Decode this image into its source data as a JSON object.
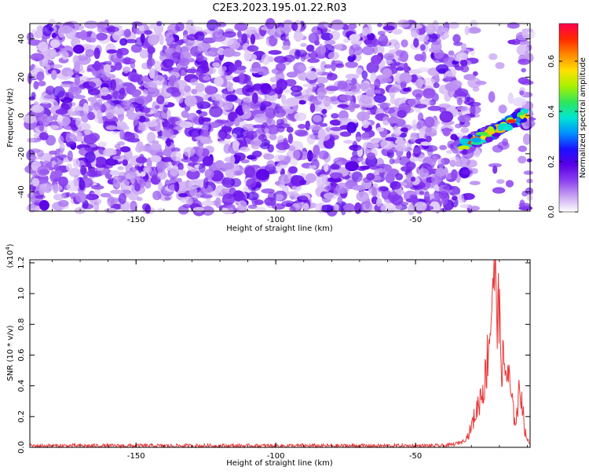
{
  "title": "C2E3.2023.195.01.22.R03",
  "chart_data": [
    {
      "type": "heatmap",
      "xlabel": "Height of straight line (km)",
      "ylabel": "Frequency (Hz)",
      "xlim": [
        -188,
        -9
      ],
      "ylim": [
        -50,
        48
      ],
      "xticks": [
        -150,
        -100,
        -50
      ],
      "yticks": [
        -40,
        -20,
        0,
        20,
        40
      ],
      "colorbar": {
        "label": "Normalized spectral amplitude",
        "range": [
          0,
          0.75
        ],
        "ticks": [
          0.0,
          0.2,
          0.4,
          0.6
        ],
        "colormap": [
          "#ffffff",
          "#c8a4f2",
          "#8a3ff0",
          "#5a00e6",
          "#1a10ff",
          "#0090ff",
          "#00e6d2",
          "#2ee65a",
          "#a8f000",
          "#ffe000",
          "#ff8a00",
          "#ff2a00",
          "#ff0050"
        ]
      },
      "signal": {
        "x_range": [
          -33,
          -11
        ],
        "freq_start": -16,
        "freq_end": 0,
        "peak_amplitude": 0.7
      },
      "background_amplitude_max": 0.2,
      "white_gap_x": [
        -31,
        -12
      ]
    },
    {
      "type": "line",
      "xlabel": "Height of straight line (km)",
      "ylabel": "SNR (10 * v/v)",
      "y_multiplier_label": "(x10",
      "y_multiplier_exp": "4",
      "xlim": [
        -188,
        -9
      ],
      "ylim": [
        0,
        1.22
      ],
      "xticks": [
        -150,
        -100,
        -50
      ],
      "yticks": [
        0.0,
        0.2,
        0.4,
        0.6,
        0.8,
        1.0,
        1.2
      ],
      "line_color": "#e8383a",
      "series": [
        {
          "x": [
            -188,
            -100,
            -40,
            -36,
            -33,
            -31,
            -28,
            -25,
            -23,
            -22,
            -21,
            -20,
            -19,
            -18,
            -17,
            -16,
            -15,
            -14,
            -13,
            -12,
            -11,
            -10,
            -9
          ],
          "values": [
            0.01,
            0.01,
            0.01,
            0.02,
            0.04,
            0.08,
            0.25,
            0.45,
            0.85,
            1.23,
            1.05,
            0.78,
            0.55,
            0.5,
            0.48,
            0.36,
            0.22,
            0.18,
            0.33,
            0.36,
            0.12,
            0.05,
            0.02
          ]
        }
      ]
    }
  ]
}
